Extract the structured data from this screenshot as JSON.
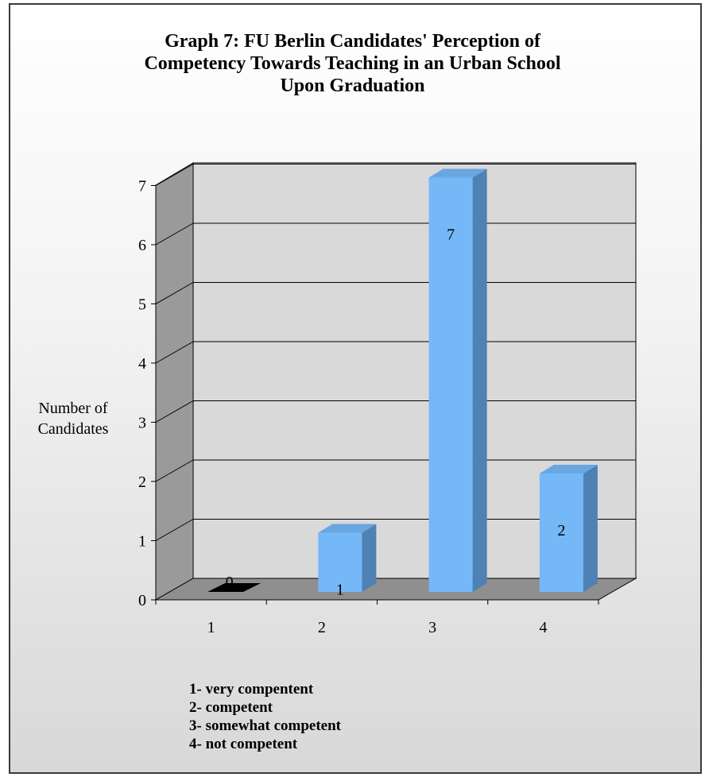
{
  "chart_data": {
    "type": "bar",
    "title_lines": [
      "Graph 7: FU Berlin Candidates' Perception of",
      "Competency Towards Teaching in an Urban School",
      "Upon Graduation"
    ],
    "ylabel_lines": [
      "Number of",
      "Candidates"
    ],
    "xlabel": "",
    "categories": [
      "1",
      "2",
      "3",
      "4"
    ],
    "values": [
      0,
      1,
      7,
      2
    ],
    "data_labels": [
      "0",
      "1",
      "7",
      "2"
    ],
    "y_ticks": [
      "0",
      "1",
      "2",
      "3",
      "4",
      "5",
      "6",
      "7"
    ],
    "ylim": [
      0,
      7
    ],
    "grid": true,
    "style": "3d-column",
    "colors": {
      "bar_front": "#74b8f8",
      "bar_side": "#4e82b4",
      "bar_top": "#6aa6df",
      "zero_bar": "#000000",
      "back_wall": "#d9d9d9",
      "side_wall": "#9a9a9a",
      "floor": "#8f8f8f"
    }
  },
  "legend": {
    "items": [
      "1- very compentent",
      "2- competent",
      "3- somewhat competent",
      "4- not competent"
    ]
  }
}
